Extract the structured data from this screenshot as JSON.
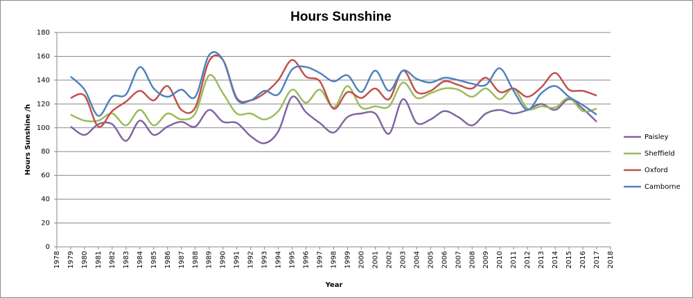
{
  "chart_data": {
    "type": "line",
    "title": "Hours Sunshine",
    "x_label": "Year",
    "y_label": "Hours Sunshine /h",
    "x": [
      1979,
      1980,
      1981,
      1982,
      1983,
      1984,
      1985,
      1986,
      1987,
      1988,
      1989,
      1990,
      1991,
      1992,
      1993,
      1994,
      1995,
      1996,
      1997,
      1998,
      1999,
      2000,
      2001,
      2002,
      2003,
      2004,
      2005,
      2006,
      2007,
      2008,
      2009,
      2010,
      2011,
      2012,
      2013,
      2014,
      2015,
      2016,
      2017
    ],
    "series": [
      {
        "name": "Paisley",
        "color": "#8064a2",
        "values": [
          101,
          94,
          103,
          103,
          89,
          106,
          94,
          101,
          105,
          101,
          115,
          105,
          104,
          93,
          87,
          97,
          126,
          113,
          104,
          96,
          109,
          112,
          112,
          95,
          124,
          104,
          107,
          114,
          109,
          102,
          112,
          115,
          112,
          115,
          120,
          115,
          124,
          116,
          105
        ]
      },
      {
        "name": "Sheffield",
        "color": "#9bbb59",
        "values": [
          111,
          106,
          106,
          112,
          102,
          115,
          102,
          112,
          107,
          112,
          144,
          129,
          112,
          112,
          107,
          114,
          132,
          121,
          132,
          117,
          135,
          117,
          118,
          118,
          138,
          125,
          129,
          133,
          132,
          126,
          133,
          124,
          133,
          116,
          118,
          117,
          125,
          114,
          116
        ]
      },
      {
        "name": "Oxford",
        "color": "#c0504d",
        "values": [
          125,
          127,
          101,
          114,
          122,
          131,
          123,
          135,
          115,
          117,
          156,
          157,
          125,
          123,
          129,
          140,
          157,
          143,
          139,
          116,
          130,
          125,
          133,
          124,
          148,
          130,
          131,
          139,
          136,
          133,
          142,
          130,
          133,
          126,
          134,
          146,
          132,
          131,
          127
        ]
      },
      {
        "name": "Camborne",
        "color": "#4f81bd",
        "values": [
          143,
          132,
          110,
          126,
          128,
          151,
          133,
          126,
          132,
          126,
          161,
          157,
          124,
          123,
          131,
          128,
          149,
          151,
          146,
          139,
          144,
          130,
          148,
          131,
          148,
          141,
          138,
          142,
          140,
          137,
          136,
          150,
          131,
          115,
          129,
          135,
          126,
          119,
          111
        ]
      }
    ],
    "xlim": [
      1978,
      2018
    ],
    "xticks": [
      1978,
      1979,
      1980,
      1981,
      1982,
      1983,
      1984,
      1985,
      1986,
      1987,
      1988,
      1989,
      1990,
      1991,
      1992,
      1993,
      1994,
      1995,
      1996,
      1997,
      1998,
      1999,
      2000,
      2001,
      2002,
      2003,
      2004,
      2005,
      2006,
      2007,
      2008,
      2009,
      2010,
      2011,
      2012,
      2013,
      2014,
      2015,
      2016,
      2017,
      2018
    ],
    "ylim": [
      0,
      180
    ],
    "yticks": [
      0,
      20,
      40,
      60,
      80,
      100,
      120,
      140,
      160,
      180
    ],
    "grid": true,
    "smooth": true,
    "legend": "right"
  }
}
